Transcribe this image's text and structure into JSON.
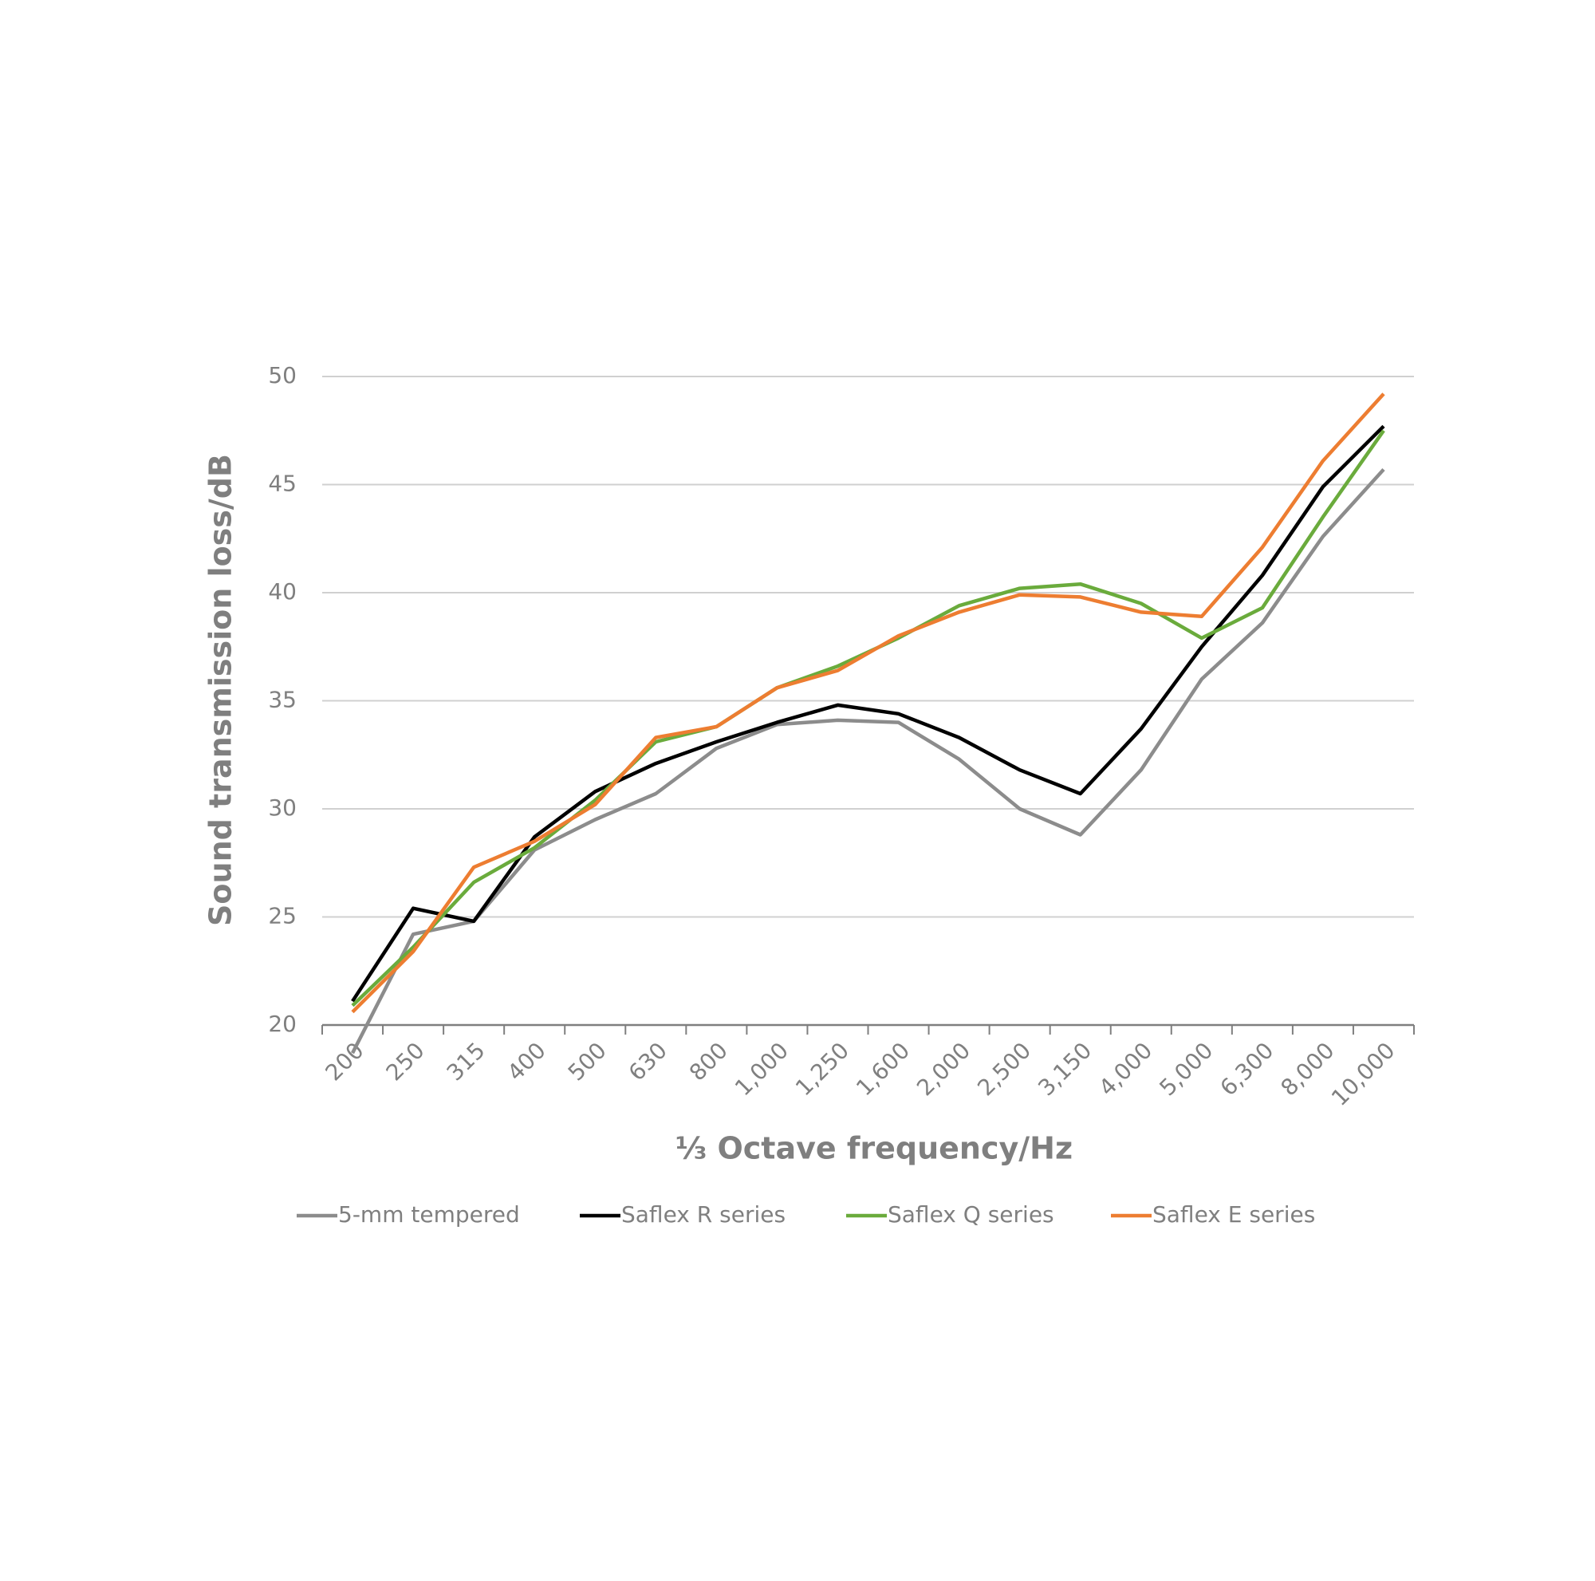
{
  "chart_data": {
    "type": "line",
    "x_label": "⅓ Octave frequency/Hz",
    "y_label": "Sound transmission loss/dB",
    "categories": [
      "200",
      "250",
      "315",
      "400",
      "500",
      "630",
      "800",
      "1,000",
      "1,250",
      "1,600",
      "2,000",
      "2,500",
      "3,150",
      "4,000",
      "5,000",
      "6,300",
      "8,000",
      "10,000"
    ],
    "series": [
      {
        "name": "5-mm tempered",
        "color": "#8c8c8c",
        "values": [
          18.7,
          24.2,
          24.8,
          28.1,
          29.5,
          30.7,
          32.8,
          33.9,
          34.1,
          34.0,
          32.3,
          30.0,
          28.8,
          31.8,
          36.0,
          38.6,
          42.6,
          45.7
        ]
      },
      {
        "name": "Saflex R series",
        "color": "#000000",
        "values": [
          21.1,
          25.4,
          24.8,
          28.7,
          30.8,
          32.1,
          33.1,
          34.0,
          34.8,
          34.4,
          33.3,
          31.8,
          30.7,
          33.7,
          37.5,
          40.8,
          44.9,
          47.7
        ]
      },
      {
        "name": "Saflex Q series",
        "color": "#6aab3c",
        "values": [
          20.9,
          23.6,
          26.6,
          28.2,
          30.4,
          33.1,
          33.8,
          35.6,
          36.6,
          37.9,
          39.4,
          40.2,
          40.4,
          39.5,
          37.9,
          39.3,
          43.5,
          47.5
        ]
      },
      {
        "name": "Saflex E series",
        "color": "#ed7d31",
        "values": [
          20.6,
          23.4,
          27.3,
          28.5,
          30.2,
          33.3,
          33.8,
          35.6,
          36.4,
          38.0,
          39.1,
          39.9,
          39.8,
          39.1,
          38.9,
          42.1,
          46.1,
          49.2
        ]
      }
    ],
    "ylim": [
      20,
      50
    ],
    "yticks": [
      20,
      25,
      30,
      35,
      40,
      45,
      50
    ],
    "grid": true
  }
}
